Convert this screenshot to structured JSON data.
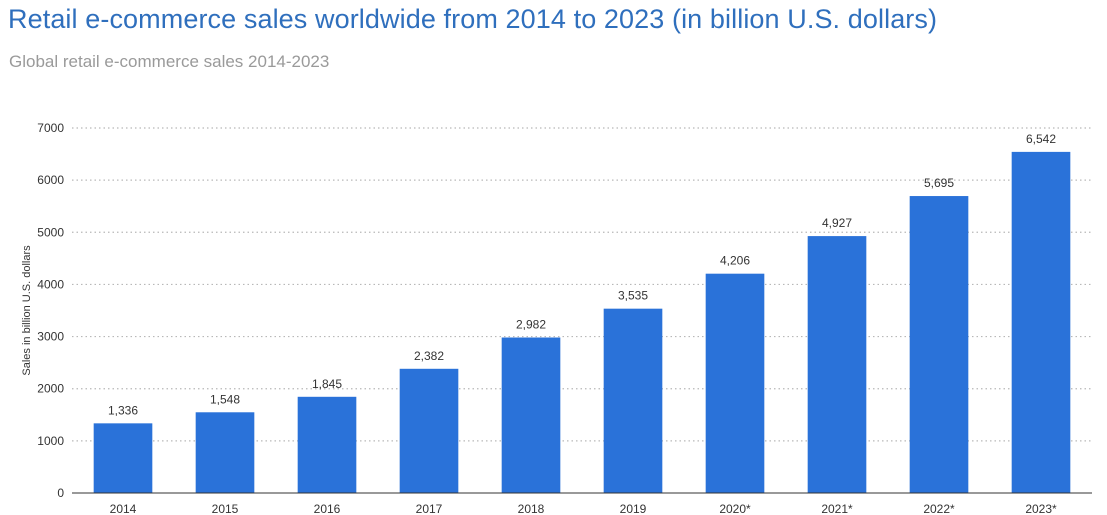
{
  "chart_data": {
    "type": "bar",
    "title": "Retail e-commerce sales worldwide from 2014 to 2023 (in billion U.S. dollars)",
    "subtitle": "Global retail e-commerce sales 2014-2023",
    "xlabel": "",
    "ylabel": "Sales in billion U.S. dollars",
    "categories": [
      "2014",
      "2015",
      "2016",
      "2017",
      "2018",
      "2019",
      "2020*",
      "2021*",
      "2022*",
      "2023*"
    ],
    "values": [
      1336,
      1548,
      1845,
      2382,
      2982,
      3535,
      4206,
      4927,
      5695,
      6542
    ],
    "value_labels": [
      "1,336",
      "1,548",
      "1,845",
      "2,382",
      "2,982",
      "3,535",
      "4,206",
      "4,927",
      "5,695",
      "6,542"
    ],
    "ylim": [
      0,
      7000
    ],
    "yticks": [
      0,
      1000,
      2000,
      3000,
      4000,
      5000,
      6000,
      7000
    ],
    "ytick_labels": [
      "0",
      "1000",
      "2000",
      "3000",
      "4000",
      "5000",
      "6000",
      "7000"
    ],
    "grid": "horizontal-dotted",
    "legend": "none",
    "bar_color": "#2a72d9",
    "grid_color": "#b8b8b8",
    "title_color": "#2f6fbd",
    "subtitle_color": "#9a9a9a"
  }
}
